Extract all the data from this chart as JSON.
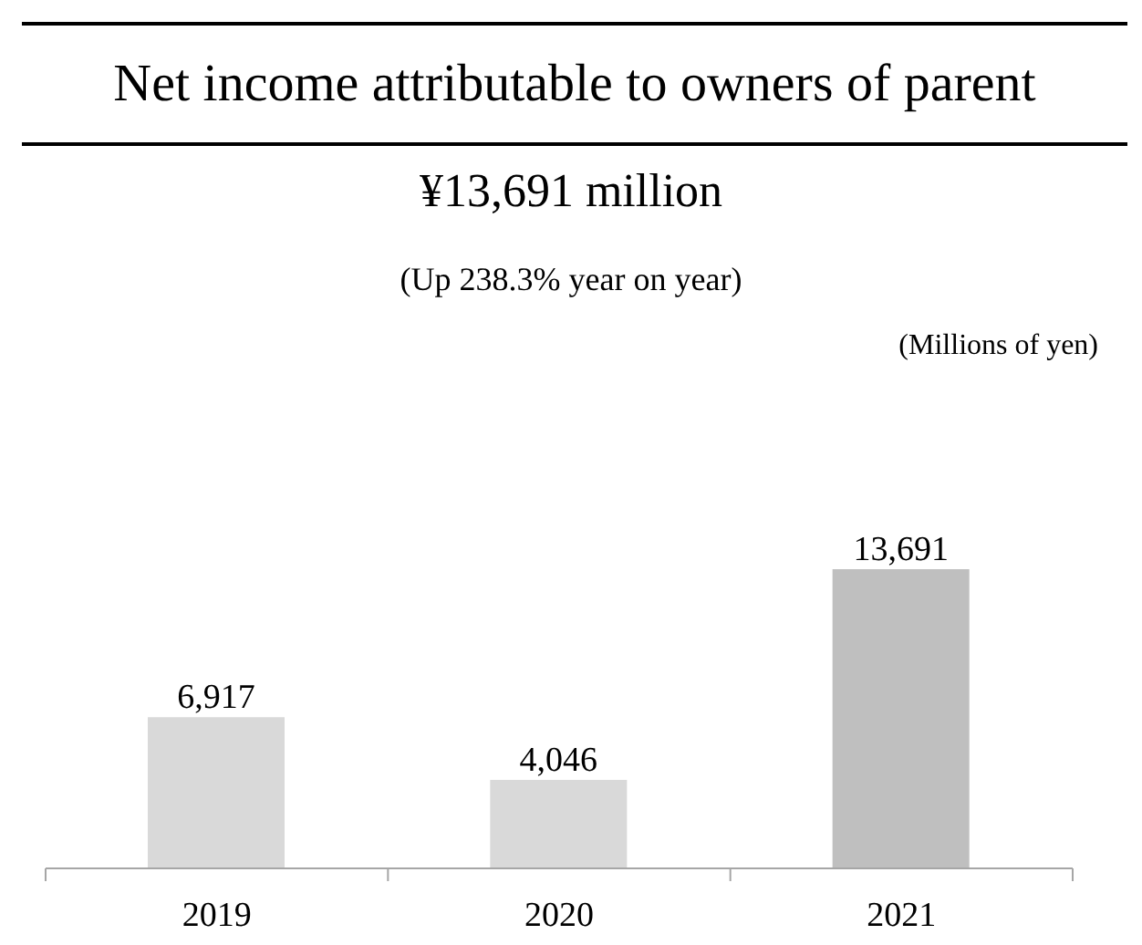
{
  "chart_data": {
    "type": "bar",
    "title": "Net income attributable to owners of parent",
    "subtitle": "¥13,691 million",
    "annotations": [
      "(Up 238.3% year on year)",
      "(Millions of yen)"
    ],
    "categories": [
      "2019",
      "2020",
      "2021"
    ],
    "values": [
      6917,
      4046,
      13691
    ],
    "value_labels": [
      "6,917",
      "4,046",
      "13,691"
    ],
    "colors": [
      "#d9d9d9",
      "#d9d9d9",
      "#bfbfbf"
    ],
    "grid": false,
    "legend": false
  }
}
